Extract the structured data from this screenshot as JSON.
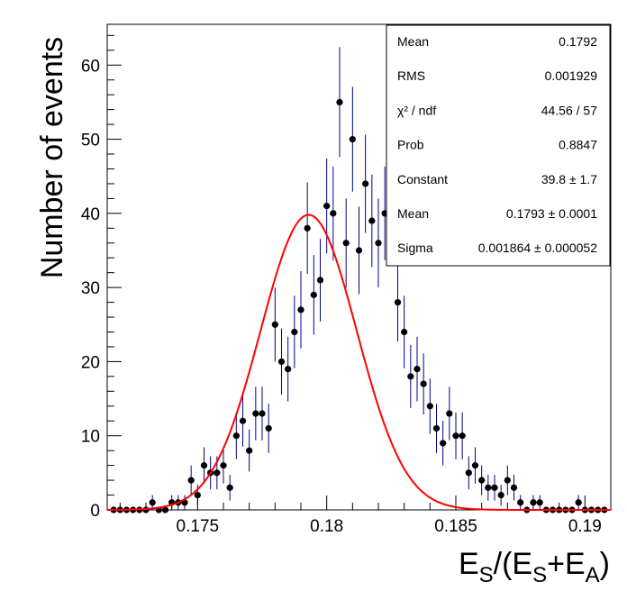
{
  "chart_data": {
    "type": "scatter",
    "title": "",
    "xlabel": "E_S/(E_S+E_A)",
    "xlabel_parts": {
      "e1": "E",
      "s1": "S",
      "mid": "/(E",
      "s2": "S",
      "plus": "+E",
      "s3": "A",
      "close": ")"
    },
    "ylabel": "Number of events",
    "xlim": [
      0.1715,
      0.191
    ],
    "ylim": [
      0,
      65.5
    ],
    "x_ticks": [
      0.175,
      0.18,
      0.185,
      0.19
    ],
    "x_tick_labels": [
      "0.175",
      "0.18",
      "0.185",
      "0.19"
    ],
    "y_ticks": [
      0,
      10,
      20,
      30,
      40,
      50,
      60
    ],
    "y_tick_labels": [
      "0",
      "10",
      "20",
      "30",
      "40",
      "50",
      "60"
    ],
    "bin_width": 0.00025,
    "series": [
      {
        "name": "data",
        "color": "#000000",
        "error_color": "#00008b",
        "x": [
          0.17175,
          0.172,
          0.17225,
          0.1725,
          0.17275,
          0.173,
          0.17325,
          0.1735,
          0.17375,
          0.174,
          0.17425,
          0.1745,
          0.17475,
          0.175,
          0.17525,
          0.1755,
          0.17575,
          0.176,
          0.17625,
          0.1765,
          0.17675,
          0.177,
          0.17725,
          0.1775,
          0.17775,
          0.178,
          0.17825,
          0.1785,
          0.17875,
          0.179,
          0.17925,
          0.1795,
          0.17975,
          0.18,
          0.18025,
          0.1805,
          0.18075,
          0.181,
          0.18125,
          0.1815,
          0.18175,
          0.182,
          0.18225,
          0.1825,
          0.18275,
          0.183,
          0.18325,
          0.1835,
          0.18375,
          0.184,
          0.18425,
          0.1845,
          0.18475,
          0.185,
          0.18525,
          0.1855,
          0.18575,
          0.186,
          0.18625,
          0.1865,
          0.18675,
          0.187,
          0.18725,
          0.1875,
          0.18775,
          0.188,
          0.18825,
          0.1885,
          0.18875,
          0.189,
          0.18925,
          0.1895,
          0.18975,
          0.19,
          0.19025,
          0.1905,
          0.19075
        ],
        "y": [
          0,
          0,
          0,
          0,
          0,
          0,
          1,
          0,
          0,
          1,
          1,
          1,
          4,
          2,
          6,
          5,
          5,
          6,
          3,
          10,
          12,
          8,
          13,
          13,
          11,
          25,
          20,
          19,
          24,
          27,
          38,
          29,
          31,
          41,
          40,
          55,
          36,
          50,
          35,
          44,
          39,
          36,
          40,
          45,
          28,
          24,
          18,
          19,
          17,
          14,
          11,
          9,
          13,
          10,
          10,
          5,
          6,
          4,
          3,
          3,
          2,
          4,
          3,
          1,
          0,
          1,
          1,
          0,
          0,
          0,
          0,
          0,
          1,
          0,
          0,
          0,
          0
        ],
        "note": "bin contents per 0.00025-wide bin; error bars = sqrt(N)"
      },
      {
        "name": "gaussian fit",
        "color": "#ff0000",
        "function": "gaus",
        "constant": 39.8,
        "mean": 0.1793,
        "sigma": 0.001864
      }
    ],
    "stats_box": {
      "position": "top-right",
      "rows": [
        {
          "label": "Mean",
          "value": "0.1792"
        },
        {
          "label": "RMS",
          "value": "0.001929"
        },
        {
          "label": "χ² / ndf",
          "value": "44.56 / 57"
        },
        {
          "label": "Prob",
          "value": "0.8847"
        },
        {
          "label": "Constant",
          "value": "39.8 ± 1.7"
        },
        {
          "label": "Mean",
          "value": "0.1793 ± 0.0001"
        },
        {
          "label": "Sigma",
          "value": "0.001864 ± 0.000052"
        }
      ]
    }
  }
}
